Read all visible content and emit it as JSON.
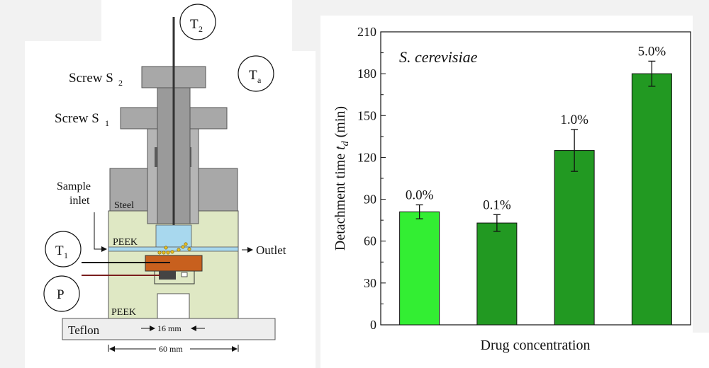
{
  "diagram": {
    "labels": {
      "t2": "T",
      "t2_sub": "2",
      "ta": "T",
      "ta_sub": "a",
      "t1": "T",
      "t1_sub": "1",
      "p": "P",
      "screw_s2": "Screw S",
      "screw_s2_sub": "2",
      "screw_s1": "Screw S",
      "screw_s1_sub": "1",
      "sample_inlet_line1": "Sample",
      "sample_inlet_line2": "inlet",
      "steel": "Steel",
      "peek_top": "PEEK",
      "peek_bottom": "PEEK",
      "teflon": "Teflon",
      "outlet": "Outlet",
      "dim_16": "16 mm",
      "dim_60": "60 mm"
    },
    "colors": {
      "steel": "#a8a8a8",
      "peek": "#dfe8c4",
      "teflon": "#eeeeee",
      "fluid": "#a8d8ee",
      "copper": "#c8601e",
      "cells": "#e8c020"
    }
  },
  "chart_data": {
    "type": "bar",
    "annotation": "S. cerevisiae",
    "xlabel": "Drug concentration",
    "ylabel_prefix": "Detachment time ",
    "ylabel_var": "t",
    "ylabel_sub": "d",
    "ylabel_suffix": " (min)",
    "ylim": [
      0,
      210
    ],
    "yticks": [
      0,
      30,
      60,
      90,
      120,
      150,
      180,
      210
    ],
    "bars": [
      {
        "label": "0.0%",
        "value": 81,
        "error": 5,
        "color": "#33ee33"
      },
      {
        "label": "0.1%",
        "value": 73,
        "error": 6,
        "color": "#229922"
      },
      {
        "label": "1.0%",
        "value": 125,
        "error": 15,
        "color": "#229922"
      },
      {
        "label": "5.0%",
        "value": 180,
        "error": 9,
        "color": "#229922"
      }
    ]
  }
}
